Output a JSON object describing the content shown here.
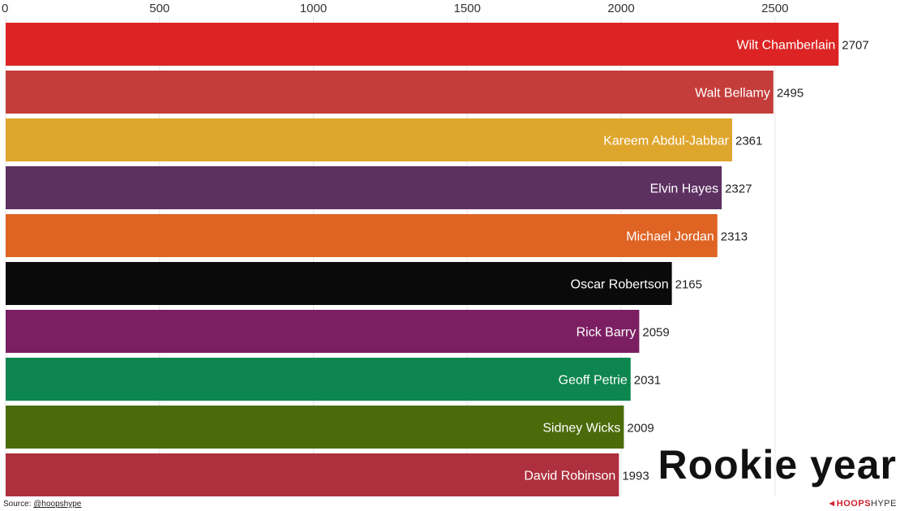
{
  "chart_data": {
    "type": "bar",
    "orientation": "horizontal",
    "categories": [
      "Wilt Chamberlain",
      "Walt Bellamy",
      "Kareem Abdul-Jabbar",
      "Elvin Hayes",
      "Michael Jordan",
      "Oscar Robertson",
      "Rick Barry",
      "Geoff Petrie",
      "Sidney Wicks",
      "David Robinson"
    ],
    "values": [
      2707,
      2495,
      2361,
      2327,
      2313,
      2165,
      2059,
      2031,
      2009,
      1993
    ],
    "colors": [
      "#dc2424",
      "#c43d3a",
      "#dfa62d",
      "#5c3061",
      "#df6424",
      "#0a0a0a",
      "#7b1f62",
      "#0d8650",
      "#4b6b0a",
      "#ae2f3e"
    ],
    "xlim": [
      0,
      2800
    ],
    "xticks": [
      0,
      500,
      1000,
      1500,
      2000,
      2500
    ],
    "xtick_labels": [
      "0",
      "500",
      "1000",
      "1500",
      "2000",
      "2500"
    ],
    "grid": true,
    "title": "Rookie year"
  },
  "footer": {
    "source_prefix": "Source: ",
    "source_handle": "@hoopshype",
    "brand_mark": "◄",
    "brand_hoops": "HOOPS",
    "brand_hype": "HYPE"
  }
}
